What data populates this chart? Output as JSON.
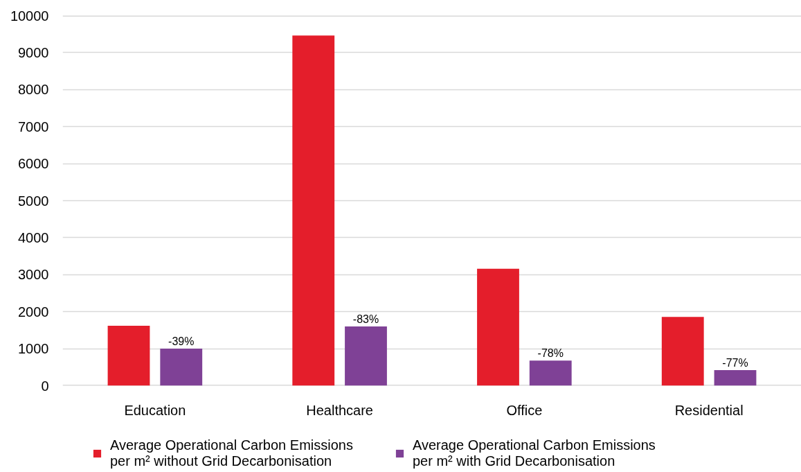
{
  "chart_data": {
    "type": "bar",
    "categories": [
      "Education",
      "Healthcare",
      "Office",
      "Residential"
    ],
    "series": [
      {
        "name": "Average Operational Carbon Emissions per m² without Grid Decarbonisation",
        "color": "#e41e2b",
        "values": [
          1620,
          9460,
          3160,
          1860
        ]
      },
      {
        "name": "Average Operational Carbon Emissions per m² with Grid Decarbonisation",
        "color": "#7f4196",
        "values": [
          1000,
          1600,
          680,
          420
        ]
      }
    ],
    "annotations": [
      "-39%",
      "-83%",
      "-78%",
      "-77%"
    ],
    "ylim": [
      0,
      10000
    ],
    "yticks": [
      0,
      1000,
      2000,
      3000,
      4000,
      5000,
      6000,
      7000,
      8000,
      9000,
      10000
    ],
    "grid": "y",
    "legend": "bottom"
  }
}
